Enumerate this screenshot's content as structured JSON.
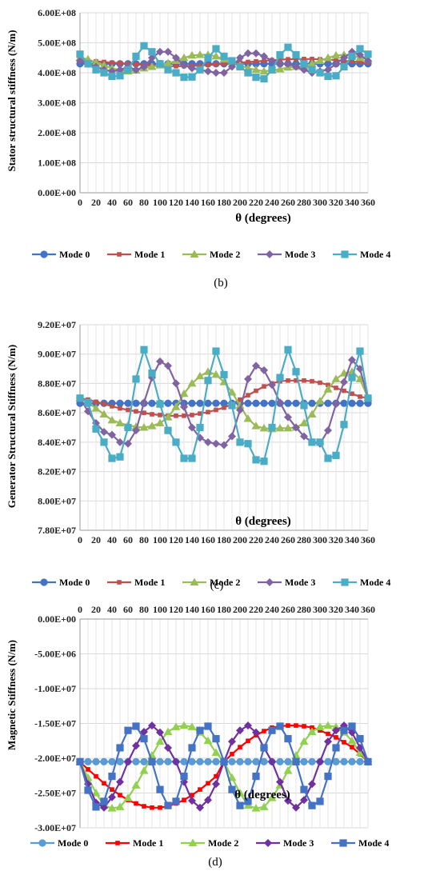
{
  "colors": {
    "panel_b": [
      "#4472c4",
      "#c0504d",
      "#9bbb59",
      "#8064a2",
      "#4bacc6"
    ],
    "panel_c": [
      "#4472c4",
      "#c0504d",
      "#9bbb59",
      "#8064a2",
      "#4bacc6"
    ],
    "panel_d": [
      "#5b9bd5",
      "#ff0000",
      "#92d050",
      "#7030a0",
      "#4472c4"
    ]
  },
  "markers": [
    "circle",
    "square-small",
    "triangle",
    "diamond",
    "square"
  ],
  "chart_data": [
    {
      "type": "line",
      "panel_label": "(b)",
      "ylabel": "Stator structural stiffness (N/m)",
      "xlabel": "θ (degrees)",
      "ylim": [
        0,
        600000000
      ],
      "yticks": [
        0,
        100000000,
        200000000,
        300000000,
        400000000,
        500000000,
        600000000
      ],
      "ytick_labels": [
        "0.00E+00",
        "1.00E+08",
        "2.00E+08",
        "3.00E+08",
        "4.00E+08",
        "5.00E+08",
        "6.00E+08"
      ],
      "xlim": [
        0,
        360
      ],
      "xticks": [
        0,
        20,
        40,
        60,
        80,
        100,
        120,
        140,
        160,
        180,
        200,
        220,
        240,
        260,
        280,
        300,
        320,
        340,
        360
      ],
      "xtick_labels": [
        "0",
        "20",
        "40",
        "60",
        "80",
        "100",
        "120",
        "140",
        "160",
        "180",
        "200",
        "220",
        "240",
        "260",
        "280",
        "300",
        "320",
        "340",
        "360"
      ],
      "x_axis_position": "bottom",
      "grid": true,
      "legend": "bottom",
      "x": [
        0,
        10,
        20,
        30,
        40,
        50,
        60,
        70,
        80,
        90,
        100,
        110,
        120,
        130,
        140,
        150,
        160,
        170,
        180,
        190,
        200,
        210,
        220,
        230,
        240,
        250,
        260,
        270,
        280,
        290,
        300,
        310,
        320,
        330,
        340,
        350,
        360
      ],
      "series": [
        {
          "name": "Mode 0",
          "values": [
            430000000,
            430000000,
            430000000,
            430000000,
            430000000,
            430000000,
            430000000,
            430000000,
            430000000,
            430000000,
            430000000,
            430000000,
            430000000,
            430000000,
            430000000,
            430000000,
            430000000,
            430000000,
            430000000,
            430000000,
            430000000,
            430000000,
            430000000,
            430000000,
            430000000,
            430000000,
            430000000,
            430000000,
            430000000,
            430000000,
            430000000,
            430000000,
            430000000,
            430000000,
            430000000,
            430000000,
            430000000
          ]
        },
        {
          "name": "Mode 1",
          "values": [
            440000000,
            439000000,
            438000000,
            436000000,
            434000000,
            432000000,
            430000000,
            428000000,
            426000000,
            424000000,
            423000000,
            422000000,
            422000000,
            422000000,
            423000000,
            424000000,
            426000000,
            428000000,
            430000000,
            432000000,
            434000000,
            436000000,
            438000000,
            440000000,
            442000000,
            444000000,
            445000000,
            446000000,
            446000000,
            446000000,
            445000000,
            444000000,
            442000000,
            440000000,
            438000000,
            436000000,
            434000000
          ]
        },
        {
          "name": "Mode 2",
          "values": [
            450000000,
            445000000,
            435000000,
            425000000,
            415000000,
            410000000,
            405000000,
            408000000,
            415000000,
            420000000,
            425000000,
            432000000,
            440000000,
            450000000,
            458000000,
            460000000,
            460000000,
            455000000,
            445000000,
            435000000,
            425000000,
            415000000,
            410000000,
            405000000,
            408000000,
            412000000,
            418000000,
            420000000,
            422000000,
            430000000,
            440000000,
            450000000,
            458000000,
            460000000,
            458000000,
            450000000,
            445000000
          ]
        },
        {
          "name": "Mode 3",
          "values": [
            440000000,
            430000000,
            420000000,
            410000000,
            405000000,
            410000000,
            420000000,
            410000000,
            420000000,
            450000000,
            470000000,
            470000000,
            450000000,
            425000000,
            415000000,
            410000000,
            405000000,
            400000000,
            400000000,
            420000000,
            450000000,
            465000000,
            465000000,
            455000000,
            440000000,
            430000000,
            430000000,
            420000000,
            410000000,
            400000000,
            405000000,
            410000000,
            430000000,
            450000000,
            470000000,
            460000000,
            440000000
          ]
        },
        {
          "name": "Mode 4",
          "values": [
            462000000,
            430000000,
            410000000,
            400000000,
            388000000,
            390000000,
            410000000,
            455000000,
            490000000,
            470000000,
            430000000,
            410000000,
            400000000,
            385000000,
            386000000,
            410000000,
            450000000,
            480000000,
            455000000,
            440000000,
            420000000,
            400000000,
            385000000,
            380000000,
            410000000,
            460000000,
            485000000,
            460000000,
            430000000,
            410000000,
            400000000,
            388000000,
            390000000,
            420000000,
            455000000,
            480000000,
            462000000
          ]
        }
      ]
    },
    {
      "type": "line",
      "panel_label": "(c)",
      "ylabel": "Generator Structural Stiffness (N/m)",
      "xlabel": "θ (degrees)",
      "ylim": [
        78000000,
        92000000
      ],
      "yticks": [
        78000000,
        80000000,
        82000000,
        84000000,
        86000000,
        88000000,
        90000000,
        92000000
      ],
      "ytick_labels": [
        "7.80E+07",
        "8.00E+07",
        "8.20E+07",
        "8.40E+07",
        "8.60E+07",
        "8.80E+07",
        "9.00E+07",
        "9.20E+07"
      ],
      "xlim": [
        0,
        360
      ],
      "xticks": [
        0,
        20,
        40,
        60,
        80,
        100,
        120,
        140,
        160,
        180,
        200,
        220,
        240,
        260,
        280,
        300,
        320,
        340,
        360
      ],
      "xtick_labels": [
        "0",
        "20",
        "40",
        "60",
        "80",
        "100",
        "120",
        "140",
        "160",
        "180",
        "200",
        "220",
        "240",
        "260",
        "280",
        "300",
        "320",
        "340",
        "360"
      ],
      "x_axis_position": "bottom",
      "grid": true,
      "legend": "bottom",
      "x": [
        0,
        10,
        20,
        30,
        40,
        50,
        60,
        70,
        80,
        90,
        100,
        110,
        120,
        130,
        140,
        150,
        160,
        170,
        180,
        190,
        200,
        210,
        220,
        230,
        240,
        250,
        260,
        270,
        280,
        290,
        300,
        310,
        320,
        330,
        340,
        350,
        360
      ],
      "series": [
        {
          "name": "Mode 0",
          "values": [
            86650000,
            86650000,
            86650000,
            86650000,
            86650000,
            86650000,
            86650000,
            86650000,
            86650000,
            86650000,
            86650000,
            86650000,
            86650000,
            86650000,
            86650000,
            86650000,
            86650000,
            86650000,
            86650000,
            86650000,
            86650000,
            86650000,
            86650000,
            86650000,
            86650000,
            86650000,
            86650000,
            86650000,
            86650000,
            86650000,
            86650000,
            86650000,
            86650000,
            86650000,
            86650000,
            86650000,
            86650000
          ]
        },
        {
          "name": "Mode 1",
          "values": [
            87000000,
            86900000,
            86750000,
            86600000,
            86450000,
            86300000,
            86200000,
            86100000,
            86000000,
            85900000,
            85850000,
            85800000,
            85800000,
            85800000,
            85850000,
            85950000,
            86050000,
            86200000,
            86350000,
            86600000,
            86900000,
            87200000,
            87500000,
            87800000,
            88000000,
            88150000,
            88200000,
            88200000,
            88200000,
            88150000,
            88050000,
            87900000,
            87700000,
            87500000,
            87300000,
            87100000,
            87000000
          ]
        },
        {
          "name": "Mode 2",
          "values": [
            87000000,
            86700000,
            86300000,
            85900000,
            85500000,
            85300000,
            85150000,
            85050000,
            85000000,
            85100000,
            85300000,
            85700000,
            86400000,
            87300000,
            88000000,
            88500000,
            88800000,
            88600000,
            88100000,
            87400000,
            86500000,
            85600000,
            85100000,
            84950000,
            84900000,
            84950000,
            84950000,
            85000000,
            85300000,
            85900000,
            86800000,
            87600000,
            88300000,
            88700000,
            88800000,
            88300000,
            87000000
          ]
        },
        {
          "name": "Mode 3",
          "values": [
            87000000,
            86100000,
            85300000,
            84700000,
            84500000,
            84000000,
            83900000,
            84800000,
            86700000,
            88400000,
            89500000,
            89200000,
            88000000,
            86400000,
            85000000,
            84300000,
            84000000,
            83900000,
            83800000,
            84400000,
            86200000,
            88300000,
            89200000,
            88900000,
            87900000,
            86700000,
            85700000,
            85000000,
            84400000,
            84000000,
            83900000,
            84800000,
            86600000,
            88100000,
            89600000,
            89000000,
            87000000
          ]
        },
        {
          "name": "Mode 4",
          "values": [
            87000000,
            86700000,
            84900000,
            84000000,
            82900000,
            83000000,
            85000000,
            88300000,
            90300000,
            88700000,
            86600000,
            84800000,
            84000000,
            82900000,
            82900000,
            85000000,
            88200000,
            90200000,
            88600000,
            86500000,
            84000000,
            83900000,
            82800000,
            82700000,
            85000000,
            88400000,
            90300000,
            88800000,
            86500000,
            84000000,
            84000000,
            82900000,
            83100000,
            85200000,
            88400000,
            90200000,
            87000000
          ]
        }
      ]
    },
    {
      "type": "line",
      "panel_label": "(d)",
      "ylabel": "Magnetic Stiffness (N/m)",
      "xlabel": "θ (degrees)",
      "ylim": [
        -30000000,
        0
      ],
      "yticks": [
        -30000000,
        -25000000,
        -20000000,
        -15000000,
        -10000000,
        -5000000,
        0
      ],
      "ytick_labels": [
        "-3.00E+07",
        "-2.50E+07",
        "-2.00E+07",
        "-1.50E+07",
        "-1.00E+07",
        "-5.00E+06",
        "0.00E+00"
      ],
      "xlim": [
        0,
        360
      ],
      "xticks": [
        0,
        20,
        40,
        60,
        80,
        100,
        120,
        140,
        160,
        180,
        200,
        220,
        240,
        260,
        280,
        300,
        320,
        340,
        360
      ],
      "xtick_labels": [
        "0",
        "20",
        "40",
        "60",
        "80",
        "100",
        "120",
        "140",
        "160",
        "180",
        "200",
        "220",
        "240",
        "260",
        "280",
        "300",
        "320",
        "340",
        "360"
      ],
      "x_axis_position": "top",
      "grid": true,
      "legend": "bottom",
      "x": [
        0,
        10,
        20,
        30,
        40,
        50,
        60,
        70,
        80,
        90,
        100,
        110,
        120,
        130,
        140,
        150,
        160,
        170,
        180,
        190,
        200,
        210,
        220,
        230,
        240,
        250,
        260,
        270,
        280,
        290,
        300,
        310,
        320,
        330,
        340,
        350,
        360
      ],
      "series": [
        {
          "name": "Mode 0",
          "values": [
            -20500000,
            -20500000,
            -20500000,
            -20500000,
            -20500000,
            -20500000,
            -20500000,
            -20500000,
            -20500000,
            -20500000,
            -20500000,
            -20500000,
            -20500000,
            -20500000,
            -20500000,
            -20500000,
            -20500000,
            -20500000,
            -20500000,
            -20500000,
            -20500000,
            -20500000,
            -20500000,
            -20500000,
            -20500000,
            -20500000,
            -20500000,
            -20500000,
            -20500000,
            -20500000,
            -20500000,
            -20500000,
            -20500000,
            -20500000,
            -20500000,
            -20500000,
            -20500000
          ]
        },
        {
          "name": "Mode 1",
          "values": [
            -20500000,
            -21600000,
            -22600000,
            -23600000,
            -24500000,
            -25300000,
            -26000000,
            -26500000,
            -26900000,
            -27100000,
            -27100000,
            -26900000,
            -26500000,
            -26000000,
            -25300000,
            -24500000,
            -23600000,
            -22600000,
            -20500000,
            -19400000,
            -18400000,
            -17500000,
            -16700000,
            -16100000,
            -15600000,
            -15400000,
            -15300000,
            -15300000,
            -15400000,
            -15600000,
            -16000000,
            -16500000,
            -17000000,
            -17700000,
            -18400000,
            -19400000,
            -20500000
          ]
        },
        {
          "name": "Mode 2",
          "values": [
            -20500000,
            -22800000,
            -25000000,
            -26800000,
            -27200000,
            -27000000,
            -25700000,
            -23900000,
            -21800000,
            -19600000,
            -17600000,
            -16200000,
            -15500000,
            -15300000,
            -15500000,
            -16300000,
            -17500000,
            -19200000,
            -20500000,
            -22800000,
            -25000000,
            -26800000,
            -27200000,
            -27000000,
            -25700000,
            -23900000,
            -21800000,
            -19600000,
            -17600000,
            -16200000,
            -15500000,
            -15300000,
            -15500000,
            -16300000,
            -17500000,
            -19200000,
            -20500000
          ]
        },
        {
          "name": "Mode 3",
          "values": [
            -20500000,
            -23700000,
            -26400000,
            -27100000,
            -25600000,
            -23400000,
            -20500000,
            -18200000,
            -16200000,
            -15300000,
            -16300000,
            -18500000,
            -20500000,
            -23400000,
            -26100000,
            -27100000,
            -26000000,
            -23700000,
            -20500000,
            -17600000,
            -16000000,
            -15300000,
            -16300000,
            -18500000,
            -20500000,
            -23400000,
            -26100000,
            -27100000,
            -26000000,
            -23700000,
            -20500000,
            -17600000,
            -16000000,
            -15300000,
            -16300000,
            -18500000,
            -20500000
          ]
        },
        {
          "name": "Mode 4",
          "values": [
            -20500000,
            -24600000,
            -27000000,
            -26200000,
            -22600000,
            -18500000,
            -16000000,
            -15400000,
            -17200000,
            -20500000,
            -24500000,
            -26800000,
            -26200000,
            -22600000,
            -18500000,
            -16000000,
            -15400000,
            -17200000,
            -20500000,
            -24500000,
            -26800000,
            -26200000,
            -22600000,
            -18500000,
            -16000000,
            -15400000,
            -17200000,
            -20500000,
            -24500000,
            -26800000,
            -26200000,
            -22600000,
            -18500000,
            -16000000,
            -15400000,
            -17200000,
            -20500000
          ]
        }
      ]
    }
  ]
}
